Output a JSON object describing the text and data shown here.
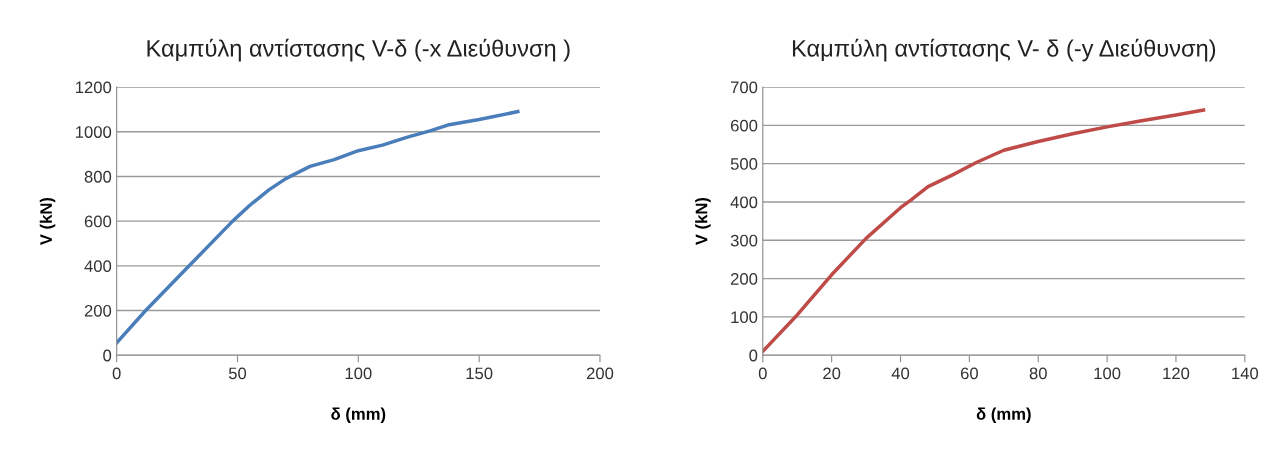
{
  "chart_data": [
    {
      "type": "line",
      "title": "Καμπύλη αντίστασης V-δ (-x Διεύθυνση )",
      "xlabel": "δ (mm)",
      "ylabel": "V (kN)",
      "xlim": [
        0,
        200
      ],
      "xticks": [
        0,
        50,
        100,
        150,
        200
      ],
      "ylim": [
        0,
        1200
      ],
      "yticks": [
        0,
        200,
        400,
        600,
        800,
        1000,
        1200
      ],
      "grid": "y",
      "series": [
        {
          "color": "#4a7ebb",
          "x": [
            0,
            12,
            30,
            48,
            55,
            63,
            70,
            80,
            90,
            100,
            110,
            120,
            130,
            137,
            150,
            166
          ],
          "values": [
            55,
            200,
            400,
            600,
            670,
            740,
            790,
            845,
            875,
            915,
            940,
            975,
            1005,
            1030,
            1055,
            1090
          ]
        }
      ]
    },
    {
      "type": "line",
      "title": "Καμπύλη αντίστασης V- δ (-y Διεύθυνση)",
      "xlabel": "δ (mm)",
      "ylabel": "V (kN)",
      "xlim": [
        0,
        140
      ],
      "xticks": [
        0,
        20,
        40,
        60,
        80,
        100,
        120,
        140
      ],
      "ylim": [
        0,
        700
      ],
      "yticks": [
        0,
        100,
        200,
        300,
        400,
        500,
        600,
        700
      ],
      "grid": "y",
      "series": [
        {
          "color": "#be4b48",
          "x": [
            0,
            10,
            20,
            30,
            40,
            43,
            48,
            55,
            62,
            70,
            80,
            90,
            100,
            110,
            120,
            128
          ],
          "values": [
            10,
            105,
            210,
            305,
            385,
            405,
            440,
            470,
            503,
            535,
            558,
            578,
            596,
            612,
            627,
            640
          ]
        }
      ]
    }
  ]
}
